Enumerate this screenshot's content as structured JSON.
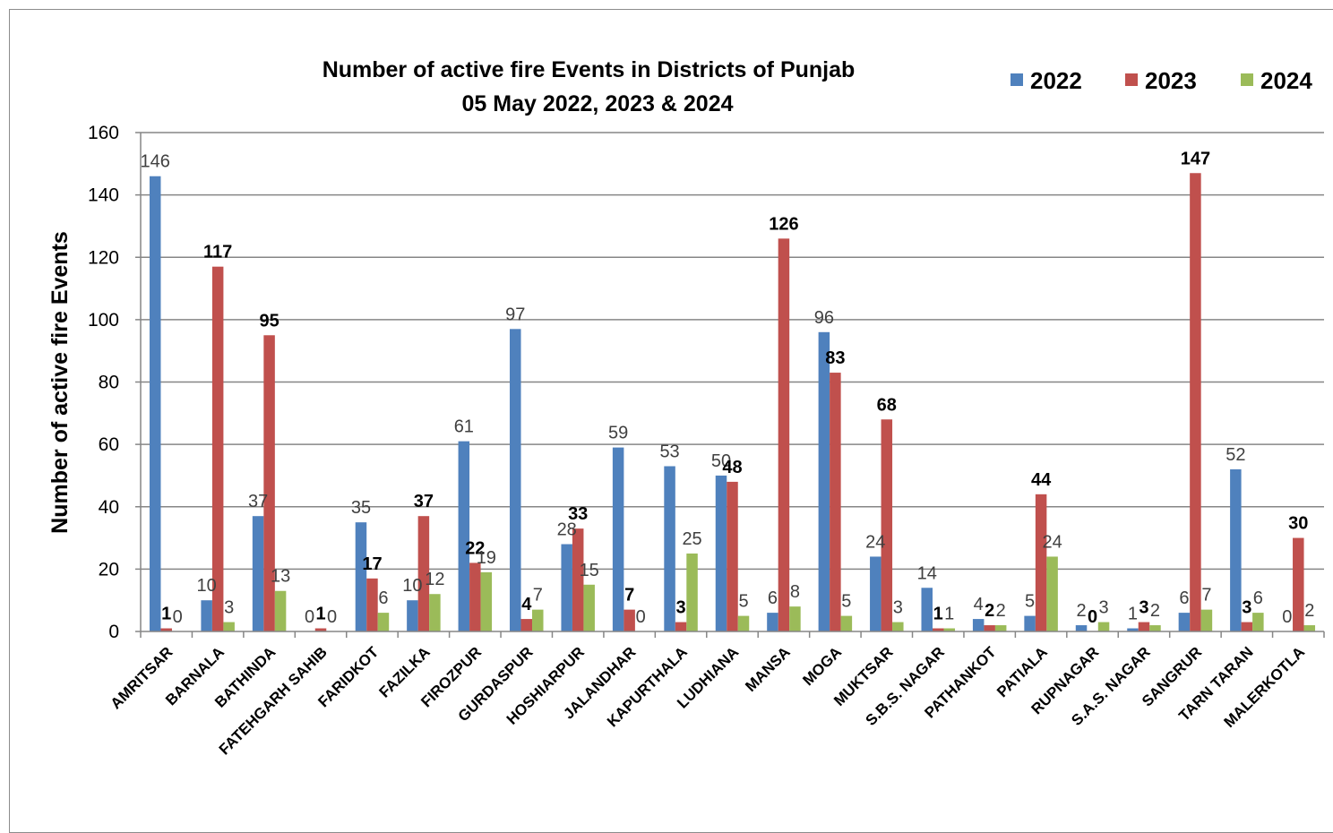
{
  "chart_data": {
    "type": "bar",
    "title_lines": [
      "Number of active fire Events in Districts of Punjab",
      "05 May 2022, 2023 & 2024"
    ],
    "ylabel": "Number of active fire Events",
    "xlabel": "",
    "ylim": [
      0,
      160
    ],
    "yticks": [
      0,
      20,
      40,
      60,
      80,
      100,
      120,
      140,
      160
    ],
    "grid": true,
    "legend_position": "top-right",
    "categories": [
      "AMRITSAR",
      "BARNALA",
      "BATHINDA",
      "FATEHGARH SAHIB",
      "FARIDKOT",
      "FAZILKA",
      "FIROZPUR",
      "GURDASPUR",
      "HOSHIARPUR",
      "JALANDHAR",
      "KAPURTHALA",
      "LUDHIANA",
      "MANSA",
      "MOGA",
      "MUKTSAR",
      "S.B.S. NAGAR",
      "PATHANKOT",
      "PATIALA",
      "RUPNAGAR",
      "S.A.S. NAGAR",
      "SANGRUR",
      "TARN TARAN",
      "MALERKOTLA"
    ],
    "series": [
      {
        "name": "2022",
        "color": "#4f81bd",
        "label_style": "normal",
        "values": [
          146,
          10,
          37,
          0,
          35,
          10,
          61,
          97,
          28,
          59,
          53,
          50,
          6,
          96,
          24,
          14,
          4,
          5,
          2,
          1,
          6,
          52,
          0
        ]
      },
      {
        "name": "2023",
        "color": "#c0504d",
        "label_style": "bold",
        "values": [
          1,
          117,
          95,
          1,
          17,
          37,
          22,
          4,
          33,
          7,
          3,
          48,
          126,
          83,
          68,
          1,
          2,
          44,
          0,
          3,
          147,
          3,
          30
        ]
      },
      {
        "name": "2024",
        "color": "#9bbb59",
        "label_style": "normal",
        "values": [
          0,
          3,
          13,
          0,
          6,
          12,
          19,
          7,
          15,
          0,
          25,
          5,
          8,
          5,
          3,
          1,
          2,
          24,
          3,
          2,
          7,
          6,
          2
        ]
      }
    ]
  }
}
